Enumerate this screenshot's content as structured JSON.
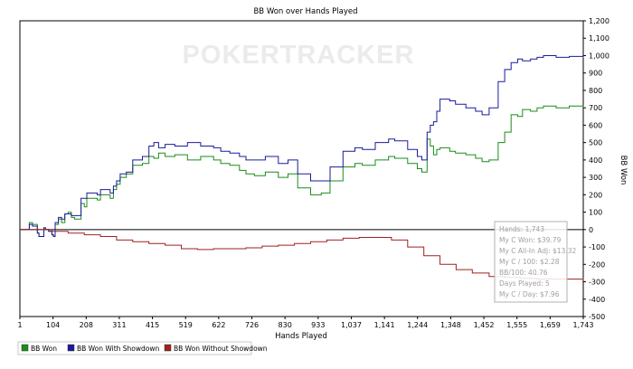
{
  "chart_data": {
    "type": "line",
    "title": "BB Won over Hands Played",
    "xlabel": "Hands Played",
    "ylabel": "BB Won",
    "watermark": "POKERTRACKER",
    "x_ticks": [
      "1",
      "104",
      "208",
      "311",
      "415",
      "519",
      "622",
      "726",
      "830",
      "933",
      "1,037",
      "1,141",
      "1,244",
      "1,348",
      "1,452",
      "1,555",
      "1,659",
      "1,743"
    ],
    "y_ticks": [
      "1,200",
      "1,100",
      "1,000",
      "900",
      "800",
      "700",
      "600",
      "500",
      "400",
      "300",
      "200",
      "100",
      "0",
      "-100",
      "-200",
      "-300",
      "-400",
      "-500"
    ],
    "xlim": [
      1,
      1743
    ],
    "ylim": [
      -500,
      1200
    ],
    "grid": false,
    "series": [
      {
        "name": "BB Won",
        "color": "#1a8c1a",
        "x": [
          1,
          30,
          40,
          55,
          60,
          75,
          80,
          90,
          100,
          105,
          110,
          120,
          130,
          140,
          150,
          160,
          170,
          190,
          200,
          208,
          240,
          250,
          280,
          290,
          300,
          311,
          330,
          350,
          380,
          400,
          415,
          430,
          450,
          480,
          519,
          560,
          600,
          622,
          650,
          680,
          700,
          726,
          760,
          800,
          830,
          860,
          900,
          933,
          960,
          1000,
          1037,
          1060,
          1100,
          1141,
          1160,
          1200,
          1230,
          1244,
          1260,
          1270,
          1280,
          1290,
          1300,
          1330,
          1348,
          1380,
          1410,
          1430,
          1452,
          1480,
          1500,
          1520,
          1540,
          1555,
          1580,
          1600,
          1620,
          1659,
          1700,
          1743
        ],
        "y": [
          0,
          40,
          30,
          -20,
          -40,
          10,
          0,
          -10,
          -30,
          -40,
          30,
          60,
          40,
          90,
          100,
          70,
          60,
          150,
          130,
          180,
          170,
          200,
          180,
          230,
          260,
          300,
          320,
          370,
          380,
          420,
          410,
          440,
          420,
          430,
          400,
          420,
          400,
          380,
          370,
          340,
          320,
          310,
          330,
          300,
          320,
          240,
          200,
          210,
          280,
          360,
          380,
          370,
          400,
          420,
          410,
          380,
          350,
          330,
          520,
          480,
          430,
          460,
          470,
          450,
          440,
          430,
          410,
          390,
          400,
          500,
          560,
          660,
          650,
          690,
          680,
          700,
          710,
          700,
          710,
          705
        ]
      },
      {
        "name": "BB Won With Showdown",
        "color": "#1a1a9c",
        "x": [
          1,
          30,
          40,
          55,
          60,
          75,
          80,
          90,
          100,
          105,
          110,
          120,
          130,
          140,
          150,
          160,
          170,
          190,
          200,
          208,
          240,
          250,
          280,
          290,
          300,
          311,
          330,
          350,
          380,
          400,
          415,
          430,
          450,
          480,
          519,
          560,
          600,
          622,
          650,
          680,
          700,
          726,
          760,
          800,
          830,
          860,
          900,
          933,
          960,
          1000,
          1037,
          1060,
          1100,
          1141,
          1160,
          1200,
          1230,
          1244,
          1260,
          1270,
          1280,
          1290,
          1300,
          1330,
          1348,
          1380,
          1410,
          1430,
          1452,
          1480,
          1500,
          1520,
          1540,
          1555,
          1580,
          1600,
          1620,
          1659,
          1700,
          1743
        ],
        "y": [
          0,
          30,
          20,
          -20,
          -40,
          10,
          0,
          -10,
          -30,
          -40,
          40,
          70,
          60,
          90,
          90,
          80,
          80,
          180,
          180,
          210,
          200,
          230,
          210,
          250,
          280,
          320,
          330,
          400,
          420,
          480,
          500,
          470,
          490,
          480,
          500,
          480,
          470,
          450,
          440,
          420,
          400,
          400,
          420,
          380,
          400,
          320,
          280,
          280,
          360,
          450,
          470,
          460,
          500,
          520,
          510,
          460,
          420,
          400,
          560,
          600,
          620,
          680,
          750,
          740,
          720,
          700,
          680,
          660,
          700,
          850,
          920,
          960,
          980,
          970,
          980,
          990,
          1000,
          990,
          995,
          985
        ]
      },
      {
        "name": "BB Won Without Showdown",
        "color": "#a02020",
        "x": [
          1,
          50,
          100,
          150,
          200,
          250,
          300,
          350,
          400,
          450,
          500,
          550,
          600,
          650,
          700,
          750,
          800,
          850,
          900,
          950,
          1000,
          1050,
          1100,
          1150,
          1200,
          1250,
          1300,
          1350,
          1400,
          1452,
          1500,
          1550,
          1600,
          1650,
          1700,
          1743
        ],
        "y": [
          0,
          0,
          -10,
          -20,
          -30,
          -40,
          -60,
          -70,
          -80,
          -90,
          -110,
          -115,
          -110,
          -110,
          -105,
          -95,
          -90,
          -80,
          -70,
          -60,
          -50,
          -45,
          -45,
          -60,
          -100,
          -150,
          -200,
          -230,
          -250,
          -270,
          -275,
          -280,
          -285,
          -285,
          -285,
          -280
        ]
      }
    ],
    "legend": "bottom"
  },
  "stats_box": {
    "lines": [
      "Hands: 1,743",
      "My C Won: $39.79",
      "My C All-In Adj: $13.32",
      "My C / 100: $2.28",
      "BB/100: 40.76",
      "Days Played: 5",
      "My C / Day: $7.96"
    ]
  }
}
